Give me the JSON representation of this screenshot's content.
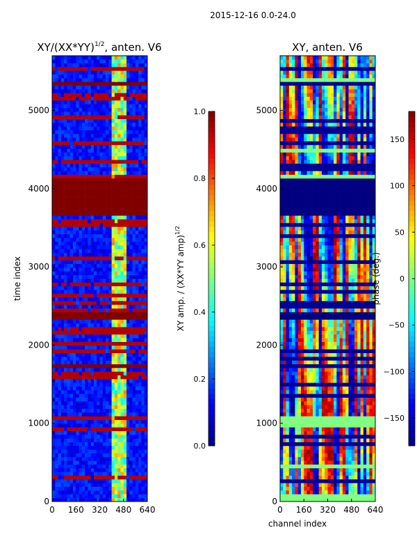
{
  "chart_data": [
    {
      "type": "heatmap",
      "suptitle": "2015-12-16 0.0-24.0",
      "title": "XY/(XX*YY)",
      "title_sup": "1/2",
      "title_suffix": ", anten. V6",
      "xlabel": "",
      "ylabel": "time index",
      "xlim": [
        0,
        640
      ],
      "ylim": [
        0,
        5700
      ],
      "xticks": [
        "0",
        "160",
        "320",
        "480",
        "640"
      ],
      "yticks": [
        "0",
        "1000",
        "2000",
        "3000",
        "4000",
        "5000"
      ],
      "xtick_values": [
        0,
        160,
        320,
        480,
        640
      ],
      "ytick_values": [
        0,
        1000,
        2000,
        3000,
        4000,
        5000
      ],
      "colormap": "jet",
      "clim": [
        0.0,
        1.0
      ],
      "colorbar": {
        "label": "XY amp. / (XX*YY amp)",
        "label_sup": "1/2",
        "ticks": [
          "0.0",
          "0.2",
          "0.4",
          "0.6",
          "0.8",
          "1.0"
        ],
        "tick_values": [
          0,
          0.2,
          0.4,
          0.6,
          0.8,
          1.0
        ]
      },
      "background_level": 0.08,
      "bright_channel_range": [
        400,
        500
      ],
      "bright_level": 0.55,
      "flagged_bands": [
        [
          3680,
          4150
        ],
        [
          2330,
          2400
        ],
        [
          5300,
          5360
        ],
        [
          1730,
          1760
        ],
        [
          470,
          490
        ]
      ],
      "flagged_level": 1.0
    },
    {
      "type": "heatmap",
      "title": "XY, anten. V6",
      "xlabel": "channel index",
      "ylabel": "",
      "xlim": [
        0,
        640
      ],
      "ylim": [
        0,
        5700
      ],
      "xticks": [
        "0",
        "160",
        "320",
        "480",
        "640"
      ],
      "yticks": [
        "0",
        "1000",
        "2000",
        "3000",
        "4000",
        "5000"
      ],
      "xtick_values": [
        0,
        160,
        320,
        480,
        640
      ],
      "ytick_values": [
        0,
        1000,
        2000,
        3000,
        4000,
        5000
      ],
      "colormap": "jet",
      "clim": [
        -180,
        180
      ],
      "colorbar": {
        "label": "phase (deg.)",
        "ticks": [
          "−150",
          "−100",
          "−50",
          "0",
          "50",
          "100",
          "150"
        ],
        "tick_values": [
          -150,
          -100,
          -50,
          0,
          50,
          100,
          150
        ]
      },
      "flagged_bands": [
        [
          3680,
          4150
        ],
        [
          2330,
          2400
        ]
      ],
      "flagged_level": -180,
      "zero_bands": [
        [
          0,
          100
        ],
        [
          420,
          480
        ],
        [
          960,
          1080
        ],
        [
          4150,
          4200
        ],
        [
          4480,
          4530
        ],
        [
          5350,
          5400
        ]
      ],
      "zero_level": 0
    }
  ]
}
